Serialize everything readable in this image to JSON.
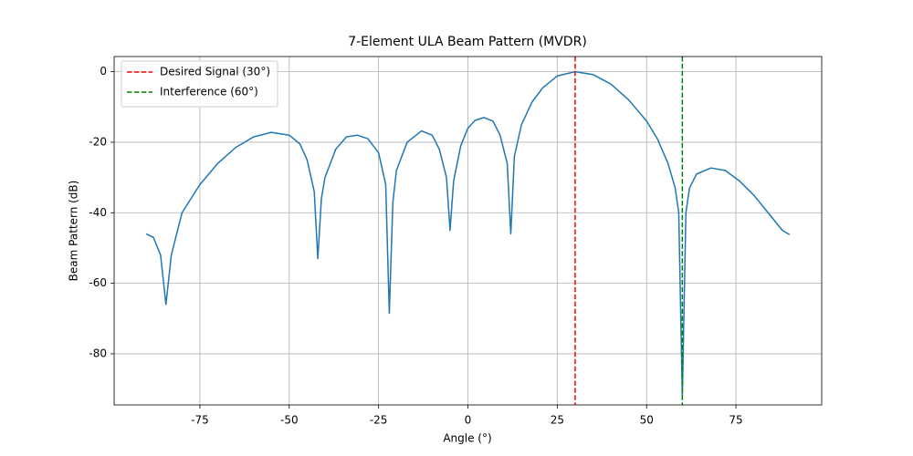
{
  "chart_data": {
    "type": "line",
    "title": "7-Element ULA Beam Pattern (MVDR)",
    "x_label": "Angle (°)",
    "y_label": "Beam Pattern (dB)",
    "color": "#1f77b4",
    "x": [
      -90,
      -88,
      -86,
      -84.5,
      -83,
      -80,
      -75,
      -70,
      -65,
      -60,
      -55,
      -50,
      -47,
      -45,
      -43,
      -42,
      -41,
      -40,
      -37,
      -34,
      -31,
      -28,
      -25,
      -23,
      -22,
      -21,
      -20,
      -17,
      -13,
      -10,
      -8,
      -6,
      -5,
      -4,
      -2,
      0,
      2,
      4.5,
      7,
      9,
      11,
      12,
      13,
      15,
      18,
      21,
      25,
      30,
      35,
      40,
      45,
      50,
      53,
      56,
      58,
      59,
      60,
      61,
      62,
      64,
      68,
      72,
      76,
      80,
      84,
      88,
      90
    ],
    "values": [
      -46,
      -47,
      -52,
      -66,
      -52,
      -40,
      -32,
      -26,
      -21.5,
      -18.5,
      -17.2,
      -18,
      -20.5,
      -25,
      -34,
      -53,
      -36,
      -30,
      -22,
      -18.5,
      -18,
      -19,
      -23,
      -32,
      -68.5,
      -37,
      -28,
      -20,
      -16.8,
      -18,
      -22,
      -30,
      -45,
      -31,
      -21,
      -16,
      -13.8,
      -13,
      -14,
      -18,
      -26,
      -46,
      -24,
      -15,
      -8.5,
      -4.5,
      -1.2,
      0,
      -0.8,
      -3.5,
      -8,
      -14,
      -19,
      -26,
      -33,
      -40,
      -92,
      -40,
      -33,
      -29,
      -27.3,
      -28,
      -31,
      -35,
      -40,
      -45,
      -46.2
    ],
    "vlines": [
      {
        "name": "Desired Signal (30°)",
        "color": "#ff0000",
        "x": 30
      },
      {
        "name": "Interference (60°)",
        "color": "#008000",
        "x": 60
      }
    ],
    "xlim": [
      -99,
      99
    ],
    "ylim": [
      -94.5,
      4.3
    ],
    "xticks": [
      -75,
      -50,
      -25,
      0,
      25,
      50,
      75
    ],
    "yticks": [
      0,
      -20,
      -40,
      -60,
      -80
    ],
    "grid": true,
    "legend": "upper left"
  }
}
